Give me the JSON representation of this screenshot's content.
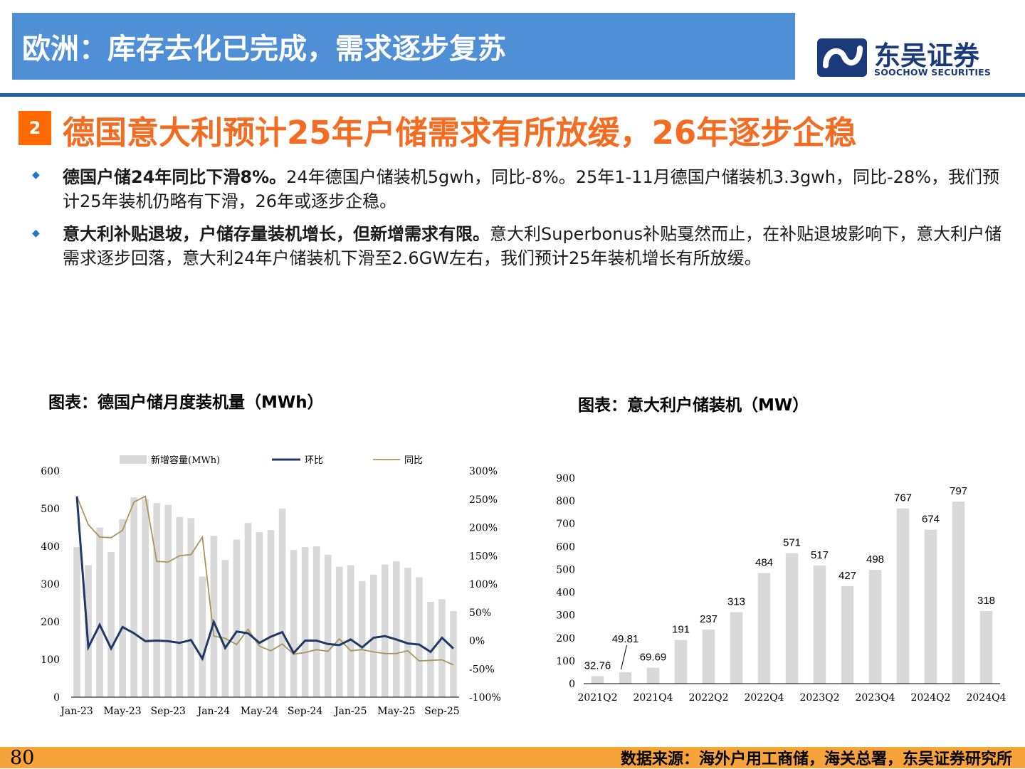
{
  "header": {
    "title": "欧洲：库存去化已完成，需求逐步复苏",
    "logo_cn": "东吴证券",
    "logo_en": "SOOCHOW SECURITIES"
  },
  "section": {
    "number": "2",
    "title": "德国意大利预计25年户储需求有所放缓，26年逐步企稳"
  },
  "bullets": [
    {
      "bold": "德国户储24年同比下滑8%。",
      "text": "24年德国户储装机5gwh，同比-8%。25年1-11月德国户储装机3.3gwh，同比-28%，我们预计25年装机仍略有下滑，26年或逐步企稳。"
    },
    {
      "bold": "意大利补贴退坡，户储存量装机增长，但新增需求有限。",
      "text": "意大利Superbonus补贴戛然而止，在补贴退坡影响下，意大利户储需求逐步回落，意大利24年户储装机下滑至2.6GW左右，我们预计25年装机增长有所放缓。"
    }
  ],
  "chart_data": [
    {
      "type": "bar",
      "title": "图表：德国户储月度装机量（MWh）",
      "categories": [
        "Jan-23",
        "Feb-23",
        "Mar-23",
        "Apr-23",
        "May-23",
        "Jun-23",
        "Jul-23",
        "Aug-23",
        "Sep-23",
        "Oct-23",
        "Nov-23",
        "Dec-23",
        "Jan-24",
        "Feb-24",
        "Mar-24",
        "Apr-24",
        "May-24",
        "Jun-24",
        "Jul-24",
        "Aug-24",
        "Sep-24",
        "Oct-24",
        "Nov-24",
        "Dec-24",
        "Jan-25",
        "Feb-25",
        "Mar-25",
        "Apr-25",
        "May-25",
        "Jun-25",
        "Jul-25",
        "Aug-25",
        "Sep-25",
        "Oct-25"
      ],
      "x_tick_labels": [
        "Jan-23",
        "May-23",
        "Sep-23",
        "Jan-24",
        "May-24",
        "Sep-24",
        "Jan-25",
        "May-25",
        "Sep-25"
      ],
      "series": [
        {
          "name": "新增容量(MWh)",
          "kind": "bar",
          "axis": "left",
          "color": "#d9d9d9",
          "values": [
            398,
            350,
            450,
            385,
            472,
            530,
            525,
            515,
            510,
            478,
            475,
            320,
            428,
            364,
            418,
            462,
            438,
            443,
            500,
            390,
            398,
            400,
            378,
            346,
            350,
            308,
            325,
            352,
            360,
            343,
            318,
            253,
            260,
            228
          ]
        },
        {
          "name": "环比",
          "kind": "line",
          "axis": "right",
          "color": "#1f3864",
          "values": [
            255,
            -12,
            28,
            -14,
            24,
            13,
            -1,
            0,
            -1,
            -4,
            1,
            -32,
            33,
            -13,
            16,
            13,
            -4,
            7,
            15,
            -22,
            0,
            0,
            -6,
            -8,
            2,
            -12,
            5,
            8,
            2,
            -5,
            -7,
            -20,
            5,
            -14
          ]
        },
        {
          "name": "同比",
          "kind": "line",
          "axis": "right",
          "color": "#a8955e",
          "values": [
            255,
            205,
            183,
            182,
            195,
            245,
            255,
            140,
            139,
            150,
            152,
            183,
            8,
            4,
            -7,
            20,
            -10,
            -18,
            -6,
            -24,
            -21,
            -16,
            -19,
            3,
            -18,
            -16,
            -20,
            -23,
            -23,
            -18,
            -36,
            -35,
            -34,
            -43
          ]
        }
      ],
      "left_axis": {
        "min": 0,
        "max": 600,
        "ticks": [
          0,
          100,
          200,
          300,
          400,
          500,
          600
        ]
      },
      "right_axis": {
        "min": -100,
        "max": 300,
        "ticks": [
          "-100%",
          "-50%",
          "0%",
          "50%",
          "100%",
          "150%",
          "200%",
          "250%",
          "300%"
        ]
      },
      "legend": "top",
      "grid": false
    },
    {
      "type": "bar",
      "title": "图表：意大利户储装机（MW）",
      "categories": [
        "2021Q2",
        "2021Q3",
        "2021Q4",
        "2022Q1",
        "2022Q2",
        "2022Q3",
        "2022Q4",
        "2023Q1",
        "2023Q2",
        "2023Q3",
        "2023Q4",
        "2024Q1",
        "2024Q2",
        "2024Q3",
        "2024Q4"
      ],
      "x_tick_labels": [
        "2021Q2",
        "2021Q4",
        "2022Q2",
        "2022Q4",
        "2023Q2",
        "2023Q4",
        "2024Q2",
        "2024Q4"
      ],
      "values": [
        32.76,
        49.81,
        69.69,
        191,
        237,
        313,
        484,
        571,
        517,
        427,
        498,
        767,
        674,
        797,
        318
      ],
      "data_labels": [
        "32.76",
        "49.81",
        "69.69",
        "191",
        "237",
        "313",
        "484",
        "571",
        "517",
        "427",
        "498",
        "767",
        "674",
        "797",
        "318"
      ],
      "bar_color": "#d9d9d9",
      "ylim": [
        0,
        900
      ],
      "y_ticks": [
        0,
        100,
        200,
        300,
        400,
        500,
        600,
        700,
        800,
        900
      ],
      "grid": false
    }
  ],
  "footer": {
    "page": "80",
    "source": "数据来源：海外户用工商储，海关总署，东吴证券研究所"
  }
}
